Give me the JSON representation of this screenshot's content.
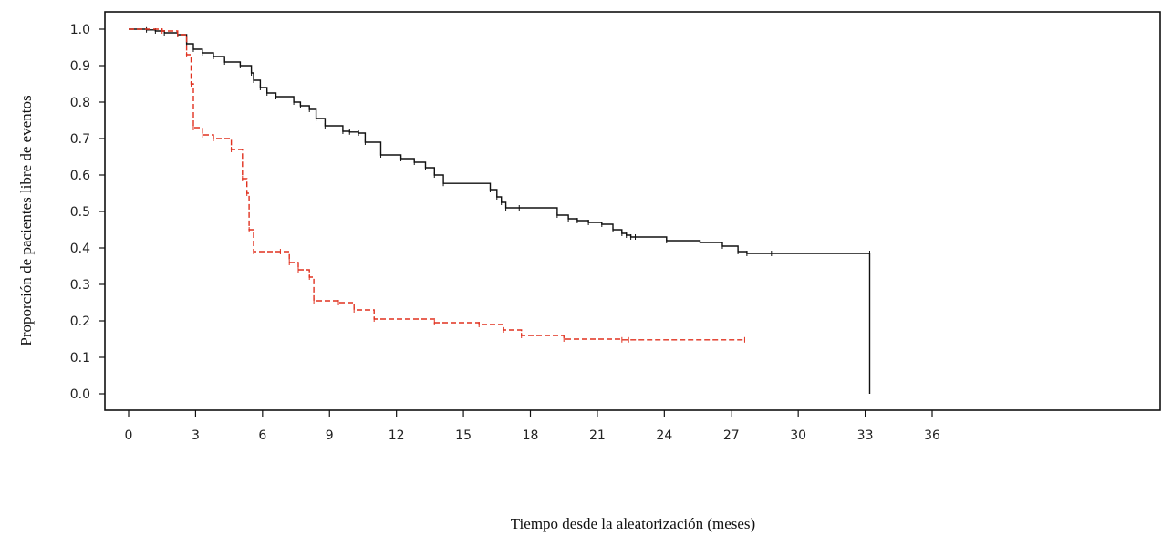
{
  "chart_data": {
    "type": "line",
    "title": "",
    "xlabel": "Tiempo desde la aleatorización (meses)",
    "ylabel": "Proporción de pacientes libre de eventos",
    "xlim": [
      0,
      36
    ],
    "ylim": [
      0.0,
      1.0
    ],
    "x_ticks": [
      "0",
      "3",
      "6",
      "9",
      "12",
      "15",
      "18",
      "21",
      "24",
      "27",
      "30",
      "33",
      "36"
    ],
    "y_ticks": [
      "1.0",
      "0.9",
      "0.8",
      "0.7",
      "0.6",
      "0.5",
      "0.4",
      "0.3",
      "0.2",
      "0.1",
      "0.0"
    ],
    "grid": false,
    "legend": "none",
    "series": [
      {
        "color": "#111111",
        "style": "solid-step",
        "x": [
          0,
          0.8,
          1.2,
          1.6,
          2.2,
          2.6,
          2.9,
          3.3,
          3.8,
          4.3,
          5.0,
          5.5,
          5.6,
          5.9,
          6.2,
          6.6,
          7.4,
          7.7,
          8.1,
          8.4,
          8.8,
          9.6,
          9.9,
          10.3,
          10.6,
          11.3,
          12.2,
          12.8,
          13.3,
          13.7,
          14.1,
          16.2,
          16.5,
          16.7,
          16.9,
          17.5,
          19.2,
          19.7,
          20.1,
          20.6,
          21.2,
          21.7,
          22.1,
          22.3,
          22.5,
          22.7,
          24.1,
          25.6,
          26.6,
          27.3,
          27.7,
          28.8,
          33.2,
          33.2
        ],
        "y": [
          1.0,
          0.998,
          0.995,
          0.99,
          0.985,
          0.96,
          0.945,
          0.935,
          0.925,
          0.91,
          0.9,
          0.88,
          0.86,
          0.84,
          0.825,
          0.815,
          0.8,
          0.79,
          0.78,
          0.755,
          0.735,
          0.72,
          0.718,
          0.715,
          0.69,
          0.655,
          0.645,
          0.635,
          0.62,
          0.6,
          0.577,
          0.56,
          0.54,
          0.525,
          0.51,
          0.51,
          0.49,
          0.48,
          0.475,
          0.47,
          0.465,
          0.45,
          0.44,
          0.435,
          0.43,
          0.43,
          0.42,
          0.415,
          0.405,
          0.39,
          0.385,
          0.385,
          0.385,
          0.0
        ]
      },
      {
        "color": "#e0311f",
        "style": "dashed-step",
        "x": [
          0,
          1.5,
          2.2,
          2.6,
          2.8,
          2.9,
          3.3,
          3.8,
          4.6,
          5.1,
          5.3,
          5.4,
          5.6,
          6.8,
          7.2,
          7.6,
          8.1,
          8.3,
          9.4,
          10.1,
          11.0,
          13.7,
          15.7,
          16.8,
          17.6,
          19.5,
          22.1,
          22.4,
          27.6
        ],
        "y": [
          1.0,
          0.995,
          0.985,
          0.93,
          0.85,
          0.73,
          0.71,
          0.7,
          0.67,
          0.59,
          0.55,
          0.45,
          0.39,
          0.39,
          0.36,
          0.34,
          0.32,
          0.255,
          0.25,
          0.23,
          0.205,
          0.195,
          0.19,
          0.175,
          0.16,
          0.15,
          0.148,
          0.148,
          0.148
        ]
      }
    ]
  }
}
